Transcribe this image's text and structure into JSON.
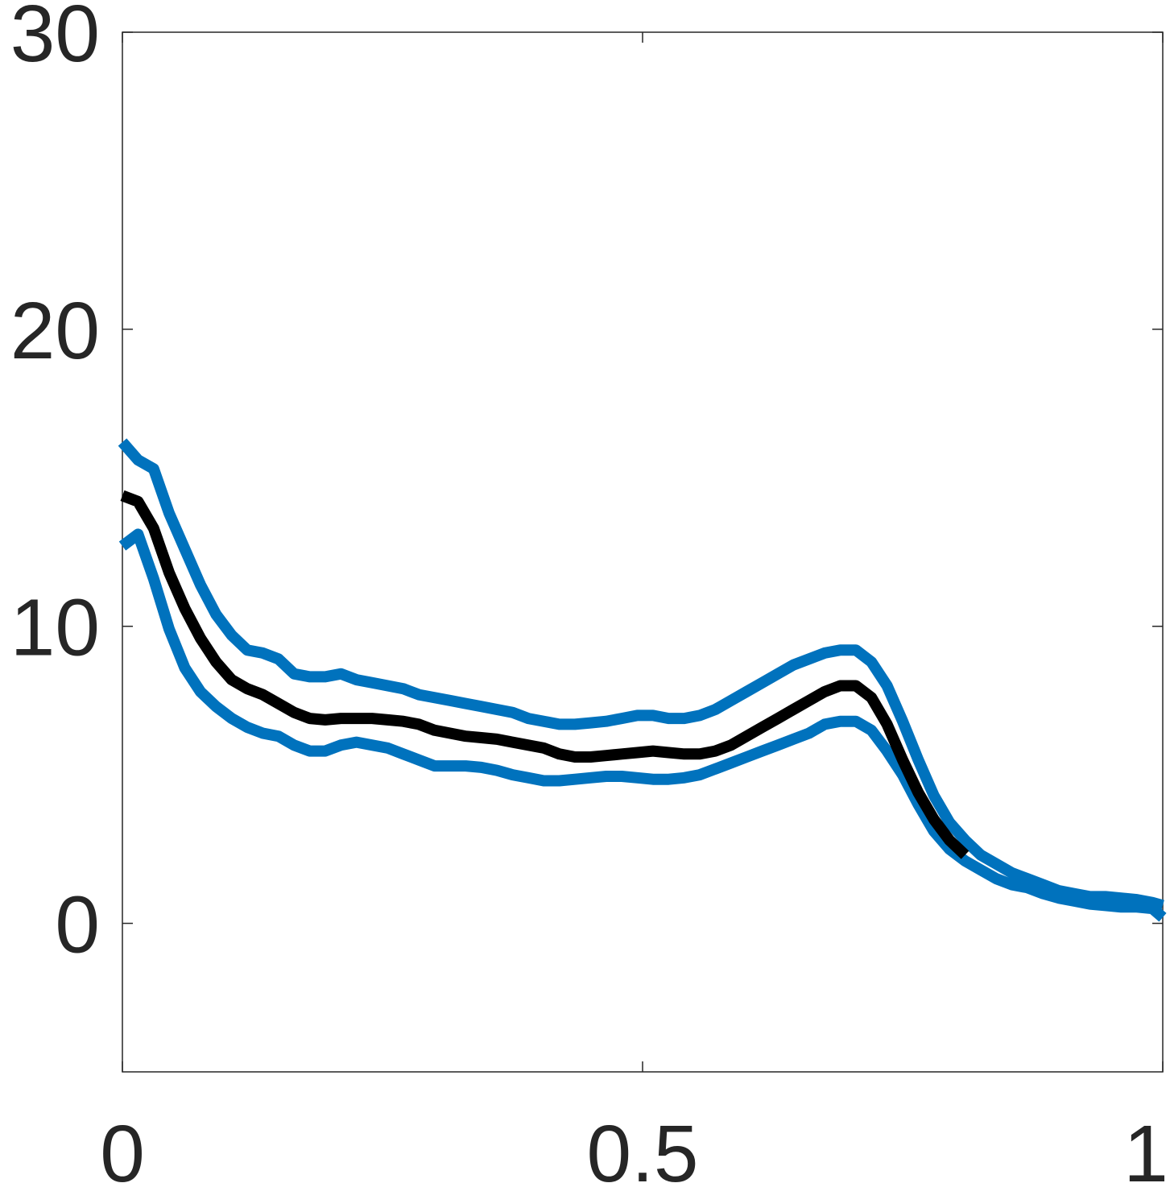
{
  "chart_data": {
    "type": "line",
    "title": "",
    "xlabel": "",
    "ylabel": "",
    "xlim": [
      0,
      1
    ],
    "ylim": [
      -5,
      30
    ],
    "xticks": [
      0,
      0.5,
      1
    ],
    "yticks": [
      0,
      10,
      20,
      30
    ],
    "xtick_labels": [
      "0",
      "0.5",
      "1"
    ],
    "ytick_labels": [
      "0",
      "10",
      "20",
      "30"
    ],
    "grid": false,
    "box": true,
    "colors": {
      "mean": "#000000",
      "bounds": "#0072BD",
      "axis": "#262626"
    },
    "series": [
      {
        "color": "#0072BD",
        "x": [
          0,
          0.015,
          0.03,
          0.045,
          0.06,
          0.075,
          0.09,
          0.105,
          0.12,
          0.135,
          0.15,
          0.165,
          0.18,
          0.195,
          0.21,
          0.225,
          0.24,
          0.255,
          0.27,
          0.285,
          0.3,
          0.315,
          0.33,
          0.345,
          0.36,
          0.375,
          0.39,
          0.405,
          0.42,
          0.435,
          0.45,
          0.465,
          0.48,
          0.495,
          0.51,
          0.525,
          0.54,
          0.555,
          0.57,
          0.585,
          0.6,
          0.615,
          0.63,
          0.645,
          0.66,
          0.675,
          0.69,
          0.705,
          0.72,
          0.735,
          0.75,
          0.765,
          0.78,
          0.795,
          0.81,
          0.825,
          0.84,
          0.855,
          0.87,
          0.885,
          0.9,
          0.915,
          0.93,
          0.945,
          0.96,
          0.975,
          0.99,
          1.0
        ],
        "values": [
          16.2,
          15.6,
          15.3,
          13.8,
          12.6,
          11.4,
          10.4,
          9.7,
          9.2,
          9.1,
          8.9,
          8.4,
          8.3,
          8.3,
          8.4,
          8.2,
          8.1,
          8.0,
          7.9,
          7.7,
          7.6,
          7.5,
          7.4,
          7.3,
          7.2,
          7.1,
          6.9,
          6.8,
          6.7,
          6.7,
          6.75,
          6.8,
          6.9,
          7.0,
          7.0,
          6.9,
          6.9,
          7.0,
          7.2,
          7.5,
          7.8,
          8.1,
          8.4,
          8.7,
          8.9,
          9.1,
          9.2,
          9.2,
          8.8,
          8.0,
          6.8,
          5.5,
          4.3,
          3.4,
          2.8,
          2.3,
          2.0,
          1.7,
          1.5,
          1.3,
          1.1,
          1.0,
          0.9,
          0.9,
          0.85,
          0.8,
          0.7,
          0.6
        ]
      },
      {
        "color": "#000000",
        "x": [
          0,
          0.015,
          0.03,
          0.045,
          0.06,
          0.075,
          0.09,
          0.105,
          0.12,
          0.135,
          0.15,
          0.165,
          0.18,
          0.195,
          0.21,
          0.225,
          0.24,
          0.255,
          0.27,
          0.285,
          0.3,
          0.315,
          0.33,
          0.345,
          0.36,
          0.375,
          0.39,
          0.405,
          0.42,
          0.435,
          0.45,
          0.465,
          0.48,
          0.495,
          0.51,
          0.525,
          0.54,
          0.555,
          0.57,
          0.585,
          0.6,
          0.615,
          0.63,
          0.645,
          0.66,
          0.675,
          0.69,
          0.705,
          0.72,
          0.735,
          0.75,
          0.765,
          0.78,
          0.795,
          0.81
        ],
        "values": [
          14.4,
          14.2,
          13.3,
          11.8,
          10.6,
          9.6,
          8.8,
          8.2,
          7.9,
          7.7,
          7.4,
          7.1,
          6.9,
          6.85,
          6.9,
          6.9,
          6.9,
          6.85,
          6.8,
          6.7,
          6.5,
          6.4,
          6.3,
          6.25,
          6.2,
          6.1,
          6.0,
          5.9,
          5.7,
          5.6,
          5.6,
          5.65,
          5.7,
          5.75,
          5.8,
          5.75,
          5.7,
          5.7,
          5.8,
          6.0,
          6.3,
          6.6,
          6.9,
          7.2,
          7.5,
          7.8,
          8.0,
          8.0,
          7.6,
          6.7,
          5.5,
          4.4,
          3.5,
          2.8,
          2.3
        ]
      },
      {
        "color": "#0072BD",
        "x": [
          0,
          0.015,
          0.03,
          0.045,
          0.06,
          0.075,
          0.09,
          0.105,
          0.12,
          0.135,
          0.15,
          0.165,
          0.18,
          0.195,
          0.21,
          0.225,
          0.24,
          0.255,
          0.27,
          0.285,
          0.3,
          0.315,
          0.33,
          0.345,
          0.36,
          0.375,
          0.39,
          0.405,
          0.42,
          0.435,
          0.45,
          0.465,
          0.48,
          0.495,
          0.51,
          0.525,
          0.54,
          0.555,
          0.57,
          0.585,
          0.6,
          0.615,
          0.63,
          0.645,
          0.66,
          0.675,
          0.69,
          0.705,
          0.72,
          0.735,
          0.75,
          0.765,
          0.78,
          0.795,
          0.81,
          0.825,
          0.84,
          0.855,
          0.87,
          0.885,
          0.9,
          0.915,
          0.93,
          0.945,
          0.96,
          0.975,
          0.99,
          1.0
        ],
        "values": [
          12.7,
          13.1,
          11.6,
          9.9,
          8.6,
          7.8,
          7.3,
          6.9,
          6.6,
          6.4,
          6.3,
          6.0,
          5.8,
          5.8,
          6.0,
          6.1,
          6.0,
          5.9,
          5.7,
          5.5,
          5.3,
          5.3,
          5.3,
          5.25,
          5.15,
          5.0,
          4.9,
          4.8,
          4.8,
          4.85,
          4.9,
          4.95,
          4.95,
          4.9,
          4.85,
          4.85,
          4.9,
          5.0,
          5.2,
          5.4,
          5.6,
          5.8,
          6.0,
          6.2,
          6.4,
          6.7,
          6.8,
          6.8,
          6.5,
          5.8,
          5.0,
          4.0,
          3.1,
          2.5,
          2.1,
          1.8,
          1.5,
          1.3,
          1.2,
          1.0,
          0.85,
          0.75,
          0.65,
          0.6,
          0.55,
          0.55,
          0.5,
          0.2
        ]
      }
    ]
  }
}
